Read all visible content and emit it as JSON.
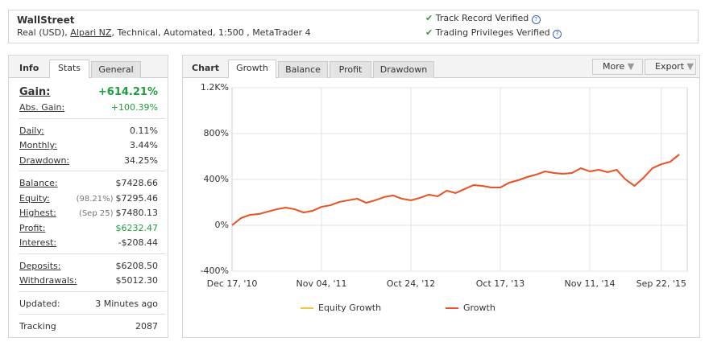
{
  "header": {
    "title": "WallStreet",
    "account_prefix": "Real (USD),",
    "broker": "Alpari NZ",
    "account_details": ", Technical, Automated, 1:500 , MetaTrader 4",
    "verified": [
      "Track Record Verified",
      "Trading Privileges Verified"
    ]
  },
  "info": {
    "title": "Info",
    "tabs": [
      "Stats",
      "General"
    ],
    "sections": [
      [
        {
          "label": "Gain:",
          "value": "+614.21%"
        },
        {
          "label": "Abs. Gain:",
          "value": "+100.39%"
        }
      ],
      [
        {
          "label": "Daily:",
          "value": "0.11%"
        },
        {
          "label": "Monthly:",
          "value": "3.44%"
        },
        {
          "label": "Drawdown:",
          "value": "34.25%"
        }
      ],
      [
        {
          "label": "Balance:",
          "value": "$7428.66"
        },
        {
          "label": "Equity:",
          "note": "(98.21%)",
          "value": "$7295.46"
        },
        {
          "label": "Highest:",
          "note": "(Sep 25)",
          "value": "$7480.13"
        },
        {
          "label": "Profit:",
          "value": "$6232.47"
        },
        {
          "label": "Interest:",
          "value": "-$208.44"
        }
      ],
      [
        {
          "label": "Deposits:",
          "value": "$6208.50"
        },
        {
          "label": "Withdrawals:",
          "value": "$5012.30"
        }
      ],
      [
        {
          "label": "Updated:",
          "value": "3 Minutes ago"
        }
      ],
      [
        {
          "label": "Tracking",
          "value": "2087"
        }
      ]
    ]
  },
  "chart_panel": {
    "title": "Chart",
    "tabs": [
      "Growth",
      "Balance",
      "Profit",
      "Drawdown"
    ],
    "buttons": [
      "More",
      "Export"
    ]
  },
  "chart_data": {
    "type": "line",
    "categories": [
      "Dec 17, '10",
      null,
      null,
      null,
      null,
      null,
      null,
      null,
      null,
      null,
      "Nov 04, '11",
      null,
      null,
      null,
      null,
      null,
      null,
      null,
      null,
      null,
      "Oct 24, '12",
      null,
      null,
      null,
      null,
      null,
      null,
      null,
      null,
      null,
      "Oct 17, '13",
      null,
      null,
      null,
      null,
      null,
      null,
      null,
      null,
      null,
      "Nov 11, '14",
      null,
      null,
      null,
      null,
      null,
      null,
      null,
      "Sep 22, '15",
      null,
      null
    ],
    "series": [
      {
        "name": "Equity Growth",
        "color": "#f5c342",
        "values": [
          0,
          63,
          91,
          98,
          119,
          140,
          154,
          140,
          112,
          126,
          161,
          175,
          204,
          218,
          232,
          196,
          218,
          246,
          260,
          232,
          218,
          239,
          267,
          253,
          302,
          281,
          316,
          351,
          344,
          330,
          330,
          372,
          393,
          421,
          442,
          470,
          456,
          449,
          456,
          498,
          470,
          484,
          463,
          484,
          400,
          344,
          414,
          498,
          533,
          554,
          618
        ]
      },
      {
        "name": "Growth",
        "color": "#e8522f",
        "values": [
          0,
          63,
          91,
          98,
          119,
          140,
          154,
          140,
          112,
          126,
          161,
          175,
          204,
          218,
          232,
          196,
          218,
          246,
          260,
          232,
          218,
          239,
          267,
          253,
          302,
          281,
          316,
          351,
          344,
          330,
          330,
          372,
          393,
          421,
          442,
          470,
          456,
          449,
          456,
          498,
          470,
          484,
          463,
          484,
          400,
          344,
          414,
          498,
          533,
          554,
          618
        ]
      }
    ],
    "ylim": [
      -400,
      1200
    ],
    "yticks": [
      {
        "value": -400,
        "label": "-400%"
      },
      {
        "value": 0,
        "label": "0%"
      },
      {
        "value": 400,
        "label": "400%"
      },
      {
        "value": 800,
        "label": "800%"
      },
      {
        "value": 1200,
        "label": "1.2K%"
      }
    ],
    "grid": true
  }
}
